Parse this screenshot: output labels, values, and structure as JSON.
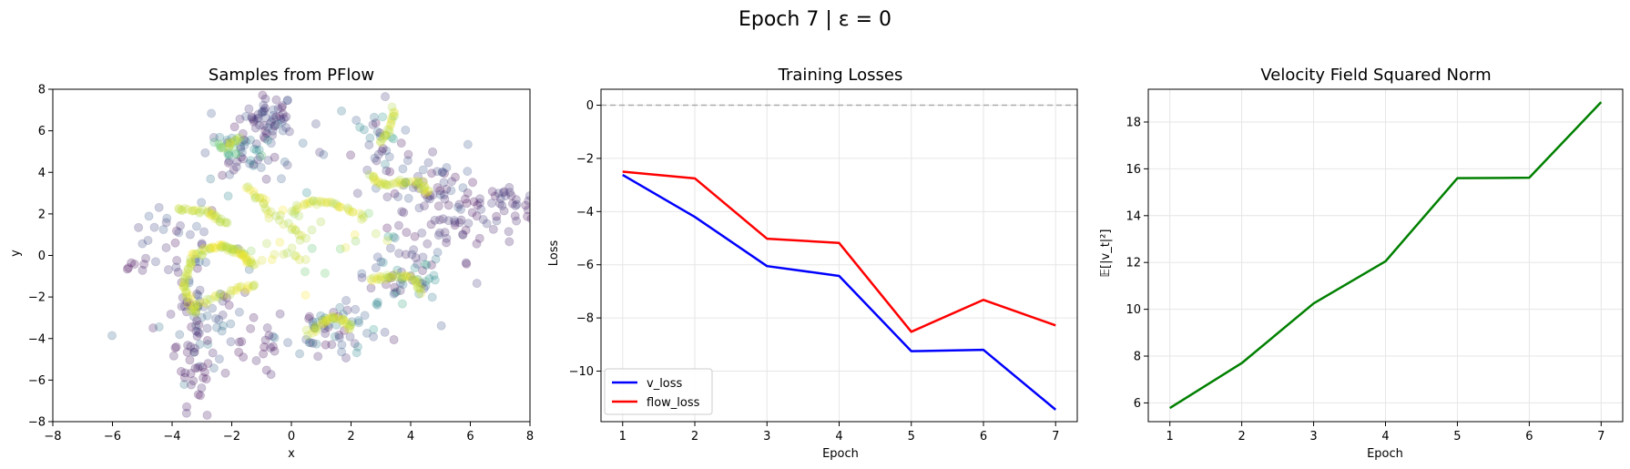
{
  "figure": {
    "suptitle": "Epoch 7 | ε = 0"
  },
  "chart_data": [
    {
      "type": "scatter",
      "title": "Samples from PFlow",
      "xlabel": "x",
      "ylabel": "y",
      "xlim": [
        -8,
        8
      ],
      "ylim": [
        -8,
        8
      ],
      "xticks": [
        -8,
        -6,
        -4,
        -2,
        0,
        2,
        4,
        6,
        8
      ],
      "yticks": [
        -8,
        -6,
        -4,
        -2,
        0,
        2,
        4,
        6,
        8
      ],
      "grid": false,
      "colormap": [
        "#440154",
        "#3b528b",
        "#21918c",
        "#5ec962",
        "#fde725"
      ],
      "alpha": 0.25,
      "clusters": [
        {
          "cx": -0.8,
          "cy": 6.8,
          "sx": 0.45,
          "sy": 0.45,
          "n": 45,
          "cmin": 0.0,
          "cmax": 0.3
        },
        {
          "cx": -1.3,
          "cy": 4.8,
          "sx": 0.9,
          "sy": 0.8,
          "n": 55,
          "cmin": 0.0,
          "cmax": 0.5
        },
        {
          "cx": -2.0,
          "cy": 5.3,
          "sx": 0.35,
          "sy": 0.45,
          "n": 22,
          "cmin": 0.3,
          "cmax": 0.8
        },
        {
          "cx": 2.9,
          "cy": 5.8,
          "sx": 0.35,
          "sy": 1.0,
          "n": 28,
          "cmin": 0.0,
          "cmax": 0.7
        },
        {
          "cx": 4.8,
          "cy": 3.4,
          "sx": 1.1,
          "sy": 0.7,
          "n": 55,
          "cmin": 0.0,
          "cmax": 0.3
        },
        {
          "cx": 6.6,
          "cy": 2.4,
          "sx": 1.0,
          "sy": 0.7,
          "n": 50,
          "cmin": 0.0,
          "cmax": 0.2
        },
        {
          "cx": 5.2,
          "cy": 1.0,
          "sx": 1.2,
          "sy": 1.0,
          "n": 30,
          "cmin": 0.0,
          "cmax": 0.2
        },
        {
          "cx": 3.6,
          "cy": -1.0,
          "sx": 0.8,
          "sy": 0.9,
          "n": 60,
          "cmin": 0.0,
          "cmax": 0.6
        },
        {
          "cx": 1.3,
          "cy": -3.6,
          "sx": 0.9,
          "sy": 0.6,
          "n": 55,
          "cmin": 0.0,
          "cmax": 0.5
        },
        {
          "cx": -3.2,
          "cy": -2.5,
          "sx": 0.7,
          "sy": 1.6,
          "n": 65,
          "cmin": 0.0,
          "cmax": 0.4
        },
        {
          "cx": -3.4,
          "cy": -5.6,
          "sx": 0.5,
          "sy": 1.0,
          "n": 30,
          "cmin": 0.0,
          "cmax": 0.1
        },
        {
          "cx": -4.0,
          "cy": 0.6,
          "sx": 0.8,
          "sy": 1.0,
          "n": 30,
          "cmin": 0.0,
          "cmax": 0.3
        },
        {
          "cx": -1.0,
          "cy": -4.6,
          "sx": 0.9,
          "sy": 0.9,
          "n": 18,
          "cmin": 0.0,
          "cmax": 0.1
        },
        {
          "cx": 0.5,
          "cy": 1.0,
          "sx": 1.3,
          "sy": 1.0,
          "n": 22,
          "cmin": 0.7,
          "cmax": 1.0
        },
        {
          "cx": -5.9,
          "cy": -0.1,
          "sx": 0.3,
          "sy": 0.2,
          "n": 3,
          "cmin": 0.0,
          "cmax": 0.05
        }
      ],
      "curves": [
        {
          "points": [
            [
              -3.2,
              -2.8
            ],
            [
              -3.6,
              -1.5
            ],
            [
              -3.3,
              0.0
            ],
            [
              -2.4,
              0.5
            ],
            [
              -1.8,
              0.2
            ],
            [
              -1.3,
              -0.4
            ]
          ],
          "n": 90
        },
        {
          "points": [
            [
              -3.8,
              2.2
            ],
            [
              -2.8,
              2.1
            ],
            [
              -2.2,
              1.5
            ]
          ],
          "n": 30
        },
        {
          "points": [
            [
              -1.5,
              3.3
            ],
            [
              -1.0,
              2.7
            ],
            [
              -0.7,
              1.9
            ]
          ],
          "n": 18
        },
        {
          "points": [
            [
              0.0,
              2.1
            ],
            [
              0.6,
              2.6
            ],
            [
              1.2,
              2.6
            ],
            [
              1.8,
              2.3
            ],
            [
              2.4,
              1.8
            ]
          ],
          "n": 35
        },
        {
          "points": [
            [
              -0.5,
              1.9
            ],
            [
              0.0,
              1.4
            ],
            [
              0.5,
              0.8
            ]
          ],
          "n": 12
        },
        {
          "points": [
            [
              0.6,
              -3.8
            ],
            [
              1.1,
              -3.1
            ],
            [
              1.6,
              -3.0
            ],
            [
              2.0,
              -3.6
            ]
          ],
          "n": 35
        },
        {
          "points": [
            [
              2.6,
              3.9
            ],
            [
              3.1,
              3.4
            ],
            [
              3.7,
              3.5
            ],
            [
              4.3,
              3.5
            ],
            [
              4.6,
              3.0
            ]
          ],
          "n": 40
        },
        {
          "points": [
            [
              3.0,
              5.4
            ],
            [
              3.3,
              6.2
            ],
            [
              3.5,
              7.0
            ]
          ],
          "n": 18
        },
        {
          "points": [
            [
              2.7,
              -1.2
            ],
            [
              3.3,
              -1.0
            ],
            [
              4.0,
              -1.0
            ],
            [
              4.4,
              -1.7
            ]
          ],
          "n": 35
        },
        {
          "points": [
            [
              -2.2,
              5.2
            ],
            [
              -1.8,
              5.6
            ]
          ],
          "n": 8
        },
        {
          "points": [
            [
              -1.2,
              -0.4
            ],
            [
              -0.2,
              0.1
            ],
            [
              0.5,
              -0.2
            ]
          ],
          "n": 10
        },
        {
          "points": [
            [
              -3.2,
              -2.4
            ],
            [
              -2.5,
              -2.0
            ],
            [
              -1.8,
              -1.6
            ],
            [
              -1.2,
              -1.4
            ]
          ],
          "n": 25
        }
      ]
    },
    {
      "type": "line",
      "title": "Training Losses",
      "xlabel": "Epoch",
      "ylabel": "Loss",
      "x": [
        1,
        2,
        3,
        4,
        5,
        6,
        7
      ],
      "xlim": [
        0.7,
        7.3
      ],
      "ylim": [
        -11.9,
        0.6
      ],
      "xticks": [
        1,
        2,
        3,
        4,
        5,
        6,
        7
      ],
      "yticks": [
        -10,
        -8,
        -6,
        -4,
        -2,
        0
      ],
      "ytick_labels": [
        "−10",
        "−8",
        "−6",
        "−4",
        "−2",
        "0"
      ],
      "grid": true,
      "hline": {
        "y": 0,
        "color": "#aaaaaa",
        "style": "dashed"
      },
      "legend_position": "lower-left",
      "series": [
        {
          "name": "v_loss",
          "color": "#0000ff",
          "values": [
            -2.62,
            -4.2,
            -6.05,
            -6.42,
            -9.25,
            -9.2,
            -11.45
          ]
        },
        {
          "name": "flow_loss",
          "color": "#ff0000",
          "values": [
            -2.5,
            -2.75,
            -5.02,
            -5.18,
            -8.52,
            -7.32,
            -8.28
          ]
        }
      ]
    },
    {
      "type": "line",
      "title": "Velocity Field Squared Norm",
      "xlabel": "Epoch",
      "ylabel": "𝔼[|v_t|²]",
      "x": [
        1,
        2,
        3,
        4,
        5,
        6,
        7
      ],
      "xlim": [
        0.7,
        7.3
      ],
      "ylim": [
        5.2,
        19.4
      ],
      "xticks": [
        1,
        2,
        3,
        4,
        5,
        6,
        7
      ],
      "yticks": [
        6,
        8,
        10,
        12,
        14,
        16,
        18
      ],
      "grid": true,
      "series": [
        {
          "color": "#008000",
          "values": [
            5.78,
            7.7,
            10.25,
            12.05,
            15.6,
            15.62,
            18.85
          ]
        }
      ]
    }
  ]
}
